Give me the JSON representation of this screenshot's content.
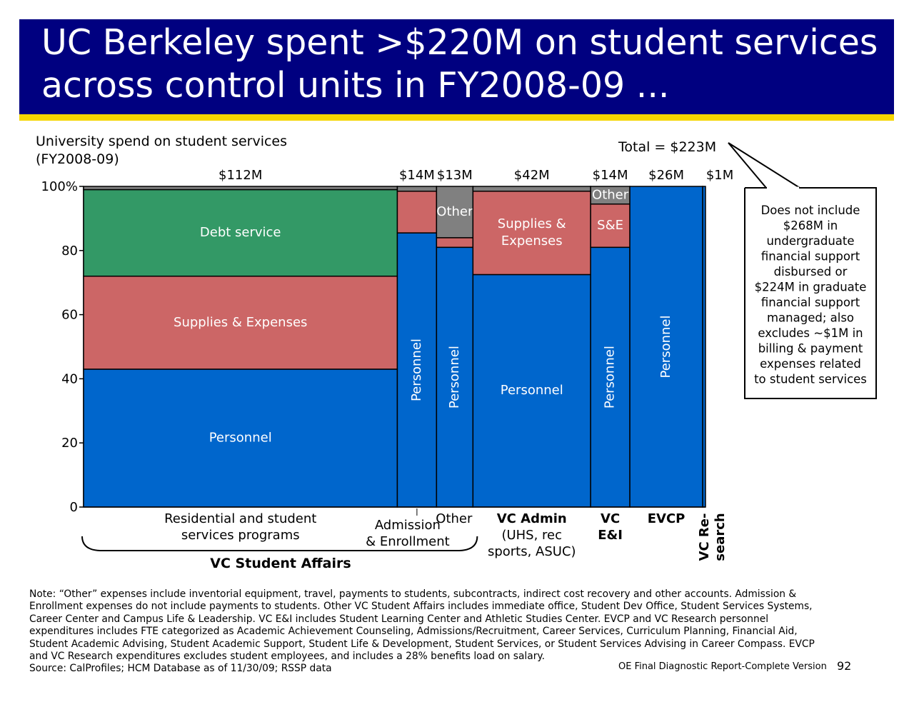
{
  "title": "UC Berkeley spent >$220M on student services across control units in FY2008-09 ...",
  "subtitle_line1": "University spend on student services",
  "subtitle_line2": "(FY2008-09)",
  "total_label": "Total = $223M",
  "callout_lines": [
    "Does not include",
    "$268M in",
    "undergraduate",
    "financial support",
    "disbursed or",
    "$224M in graduate",
    "financial support",
    "managed; also",
    "excludes ~$1M in",
    "billing & payment",
    "expenses related",
    "to student services"
  ],
  "group_brace_label": "VC Student Affairs",
  "footnote_lines": [
    "Note: “Other” expenses include inventorial equipment, travel, payments to students, subcontracts, indirect cost recovery and other accounts. Admission &",
    "Enrollment expenses do not include payments to students. Other VC Student Affairs includes immediate office, Student Dev Office, Student Services Systems,",
    "Career Center and Campus Life & Leadership. VC E&I includes Student Learning Center and Athletic Studies Center. EVCP and VC Research personnel",
    "expenditures includes FTE categorized as Academic Achievement Counseling, Admissions/Recruitment, Career Services, Curriculum Planning, Financial Aid,",
    "Student Academic Advising, Student Academic Support, Student Life & Development, Student Services, or Student Services Advising in Career Compass. EVCP",
    "and VC Research expenditures excludes student employees, and includes a 28% benefits load on salary.",
    "Source: CalProfiles; HCM Database as of 11/30/09; RSSP data"
  ],
  "report_name": "OE Final Diagnostic Report-Complete Version",
  "page_number": "92",
  "colors": {
    "title_bg": "#000080",
    "title_rule": "#f5d600",
    "personnel": "#0066cc",
    "supplies_expenses": "#cc6666",
    "debt_service": "#339966",
    "other": "#808080"
  },
  "chart_data": {
    "type": "marimekko",
    "ylim": [
      0,
      100
    ],
    "y_ticks": [
      "0",
      "20",
      "40",
      "60",
      "80",
      "100%"
    ],
    "columns": [
      {
        "name_lines": [
          "Residential and student",
          "services programs"
        ],
        "bold": false,
        "total": 112,
        "total_label": "$112M",
        "segments": [
          {
            "category": "Personnel",
            "label": "Personnel",
            "percent": 43,
            "vertical": false
          },
          {
            "category": "Supplies & Expenses",
            "label": "Supplies & Expenses",
            "percent": 29,
            "vertical": false
          },
          {
            "category": "Debt service",
            "label": "Debt service",
            "percent": 27,
            "vertical": false
          },
          {
            "category": "Other",
            "label": "",
            "percent": 1,
            "vertical": false
          }
        ]
      },
      {
        "name_lines": [
          "Admission",
          "& Enrollment"
        ],
        "bold": false,
        "total": 14,
        "total_label": "$14M",
        "segments": [
          {
            "category": "Personnel",
            "label": "Personnel",
            "percent": 85.5,
            "vertical": true
          },
          {
            "category": "Supplies & Expenses",
            "label": "",
            "percent": 13,
            "vertical": false
          },
          {
            "category": "Other",
            "label": "",
            "percent": 1.5,
            "vertical": false
          }
        ]
      },
      {
        "name_lines": [
          "Other"
        ],
        "bold": false,
        "total": 13,
        "total_label": "$13M",
        "segments": [
          {
            "category": "Personnel",
            "label": "Personnel",
            "percent": 81,
            "vertical": true
          },
          {
            "category": "Supplies & Expenses",
            "label": "",
            "percent": 3,
            "vertical": false
          },
          {
            "category": "Other",
            "label": "Other",
            "percent": 16,
            "vertical": false
          }
        ]
      },
      {
        "name_lines": [
          "VC Admin",
          "(UHS, rec",
          "sports, ASUC)"
        ],
        "bold": true,
        "total": 42,
        "total_label": "$42M",
        "segments": [
          {
            "category": "Personnel",
            "label": "Personnel",
            "percent": 72.5,
            "vertical": false
          },
          {
            "category": "Supplies & Expenses",
            "label": "Supplies & Expenses",
            "percent": 26,
            "vertical": false
          },
          {
            "category": "Other",
            "label": "",
            "percent": 1.5,
            "vertical": false
          }
        ]
      },
      {
        "name_lines": [
          "VC",
          "E&I"
        ],
        "bold": true,
        "total": 14,
        "total_label": "$14M",
        "segments": [
          {
            "category": "Personnel",
            "label": "Personnel",
            "percent": 81,
            "vertical": true
          },
          {
            "category": "Supplies & Expenses",
            "label": "S&E",
            "percent": 13.5,
            "vertical": false
          },
          {
            "category": "Other",
            "label": "Other",
            "percent": 5.5,
            "vertical": false
          }
        ]
      },
      {
        "name_lines": [
          "EVCP"
        ],
        "bold": true,
        "total": 26,
        "total_label": "$26M",
        "segments": [
          {
            "category": "Personnel",
            "label": "Personnel",
            "percent": 100,
            "vertical": true
          }
        ]
      },
      {
        "name_lines": [
          "VC Re-",
          "search"
        ],
        "bold": true,
        "total": 1,
        "total_label": "$1M",
        "name_rotated": true,
        "segments": [
          {
            "category": "Personnel",
            "label": "",
            "percent": 100,
            "vertical": false
          }
        ]
      }
    ]
  }
}
